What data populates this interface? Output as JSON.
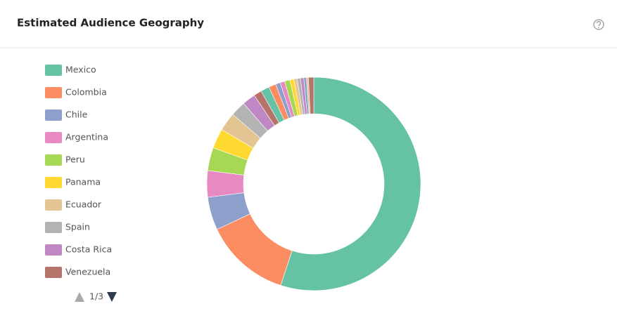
{
  "chart_data": {
    "type": "donut",
    "title": "Estimated Audience Geography",
    "categories": [
      "Mexico",
      "Colombia",
      "Chile",
      "Argentina",
      "Peru",
      "Panama",
      "Ecuador",
      "Spain",
      "Costa Rica",
      "Venezuela",
      null,
      null,
      null,
      null,
      null,
      null,
      null,
      null,
      null,
      null,
      null,
      null
    ],
    "values": [
      55,
      13,
      5,
      4,
      3.5,
      3,
      2.8,
      2.3,
      2,
      1.2,
      1.3,
      1.1,
      0.7,
      0.7,
      0.8,
      0.6,
      0.5,
      0.5,
      0.5,
      0.4,
      0.3,
      0.8
    ],
    "colors": [
      "#66c2a5",
      "#fc8d62",
      "#8da0cb",
      "#e78ac3",
      "#a6d854",
      "#ffd92f",
      "#e5c494",
      "#b3b3b3",
      "#bf87c4",
      "#b5736a",
      "#66c2a5",
      "#fc8d62",
      "#8da0cb",
      "#e78ac3",
      "#a6d854",
      "#ffd92f",
      "#e5c494",
      "#b3b3b3",
      "#bf87c4",
      "#8da0cb",
      "#e5c494",
      "#b5736a"
    ],
    "legend_page": "1/3"
  }
}
